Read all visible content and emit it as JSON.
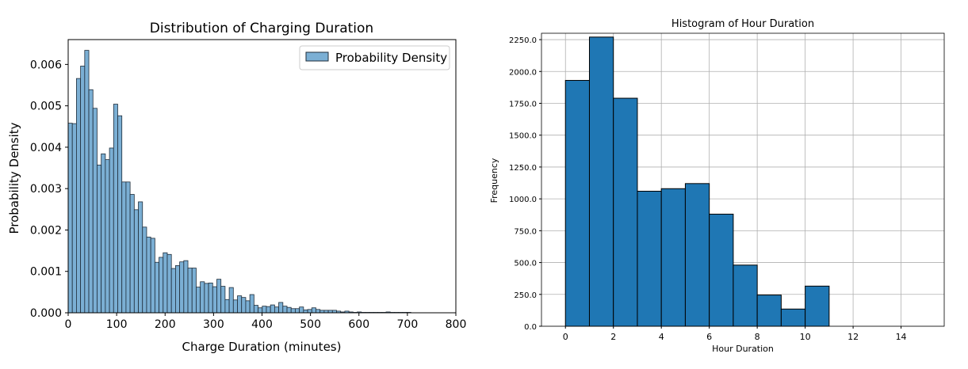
{
  "chart_data": [
    {
      "type": "bar",
      "title": "Distribution of Charging Duration",
      "xlabel": "Charge Duration (minutes)",
      "ylabel": "Probability Density",
      "xlim": [
        0,
        800
      ],
      "ylim": [
        0,
        0.0066
      ],
      "xticks": [
        0,
        100,
        200,
        300,
        400,
        500,
        600,
        700,
        800
      ],
      "xtick_labels": [
        "0",
        "100",
        "200",
        "300",
        "400",
        "500",
        "600",
        "700",
        "800"
      ],
      "yticks": [
        0,
        0.001,
        0.002,
        0.003,
        0.004,
        0.005,
        0.006
      ],
      "ytick_labels": [
        "0.000",
        "0.001",
        "0.002",
        "0.003",
        "0.004",
        "0.005",
        "0.006"
      ],
      "grid": false,
      "legend": {
        "position": "top-right",
        "entries": [
          "Probability Density"
        ]
      },
      "bin_width": 8.52,
      "bar_color": "#7bafd4",
      "edge_color": "#1f2d3a",
      "series": [
        {
          "name": "Probability Density",
          "bin_start": 0,
          "values": [
            0.00458,
            0.00457,
            0.00566,
            0.00596,
            0.00634,
            0.00539,
            0.00494,
            0.00357,
            0.00384,
            0.0037,
            0.00398,
            0.00504,
            0.00476,
            0.00316,
            0.00316,
            0.00286,
            0.00249,
            0.00268,
            0.00207,
            0.00183,
            0.0018,
            0.00122,
            0.00134,
            0.00145,
            0.00141,
            0.00107,
            0.00114,
            0.00123,
            0.00126,
            0.00108,
            0.00108,
            0.00062,
            0.00075,
            0.00071,
            0.00072,
            0.00063,
            0.00081,
            0.00064,
            0.00032,
            0.00061,
            0.00031,
            0.00041,
            0.00037,
            0.00029,
            0.00044,
            0.00018,
            0.00012,
            0.00016,
            0.00015,
            0.00019,
            0.00014,
            0.00025,
            0.00016,
            0.00013,
            0.0001,
            0.0001,
            0.00014,
            7e-05,
            8e-05,
            0.00012,
            8e-05,
            6e-05,
            6e-05,
            6e-05,
            6e-05,
            4e-05,
            2e-05,
            4e-05,
            2e-05,
            1e-05,
            2e-05,
            1e-05,
            1e-05,
            1e-05,
            1e-05,
            1e-05,
            1e-05,
            2e-05,
            1e-05,
            1e-05,
            1e-05,
            1e-05,
            1e-05
          ]
        }
      ]
    },
    {
      "type": "bar",
      "title": "Histogram of Hour Duration",
      "xlabel": "Hour Duration",
      "ylabel": "Frequency",
      "xlim": [
        -1,
        15.8
      ],
      "ylim": [
        0,
        2300
      ],
      "xticks": [
        0,
        2,
        4,
        6,
        8,
        10,
        12,
        14
      ],
      "xtick_labels": [
        "0",
        "2",
        "4",
        "6",
        "8",
        "10",
        "12",
        "14"
      ],
      "yticks": [
        0,
        250,
        500,
        750,
        1000,
        1250,
        1500,
        1750,
        2000,
        2250
      ],
      "ytick_labels": [
        "0.0",
        "250.0",
        "500.0",
        "750.0",
        "1000.0",
        "1250.0",
        "1500.0",
        "1750.0",
        "2000.0",
        "2250.0"
      ],
      "grid": true,
      "bar_color": "#1f77b4",
      "edge_color": "#000000",
      "bins": [
        {
          "start": 0,
          "end": 1,
          "value": 1930
        },
        {
          "start": 1,
          "end": 2,
          "value": 2270
        },
        {
          "start": 2,
          "end": 3,
          "value": 1790
        },
        {
          "start": 3,
          "end": 4,
          "value": 1060
        },
        {
          "start": 4,
          "end": 5,
          "value": 1080
        },
        {
          "start": 5,
          "end": 6,
          "value": 1120
        },
        {
          "start": 6,
          "end": 7,
          "value": 880
        },
        {
          "start": 7,
          "end": 8,
          "value": 480
        },
        {
          "start": 8,
          "end": 9,
          "value": 245
        },
        {
          "start": 9,
          "end": 10,
          "value": 135
        },
        {
          "start": 10,
          "end": 11,
          "value": 315
        }
      ]
    }
  ]
}
